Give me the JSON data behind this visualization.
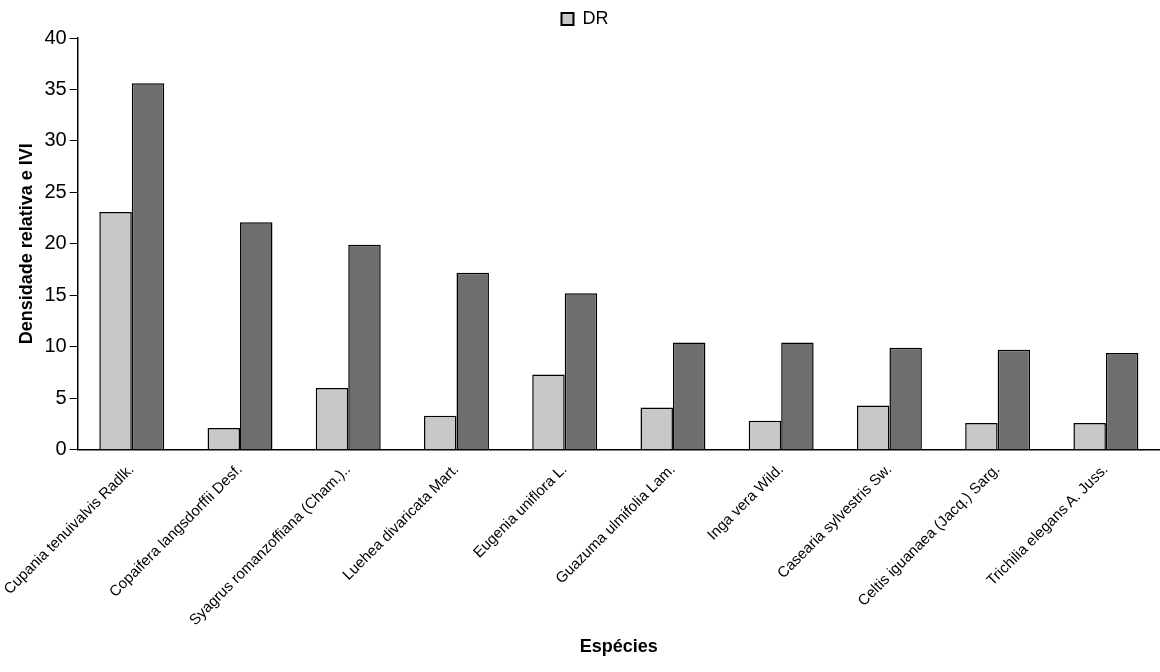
{
  "chart_data": {
    "type": "bar",
    "xlabel": "Espécies",
    "ylabel": "Densidade relativa e IVI",
    "categories": [
      "Cupania tenuivalvis Radlk.",
      "Copaifera langsdorffii Desf.",
      "Syagrus romanzoffiana (Cham.)..",
      "Luehea divaricata Mart.",
      "Eugenia uniflora L.",
      "Guazuma ulmifolia Lam.",
      "Inga vera Wild.",
      "Casearia sylvestris Sw.",
      "Celtis iguanaea (Jacq.) Sarg.",
      "Trichilia elegans A. Juss."
    ],
    "series": [
      {
        "name": "DR",
        "color": "#c8c8c8",
        "values": [
          23.1,
          2.1,
          6.0,
          3.3,
          7.3,
          4.1,
          2.8,
          4.3,
          2.6,
          2.6
        ]
      },
      {
        "color": "#6e6e6e",
        "values": [
          35.6,
          22.1,
          19.9,
          17.2,
          15.2,
          10.4,
          10.4,
          9.9,
          9.7,
          9.4
        ]
      }
    ],
    "ylim": [
      0,
      40
    ],
    "yticks": [
      0,
      5,
      10,
      15,
      20,
      25,
      30,
      35,
      40
    ],
    "grid": false,
    "legend": "top"
  }
}
